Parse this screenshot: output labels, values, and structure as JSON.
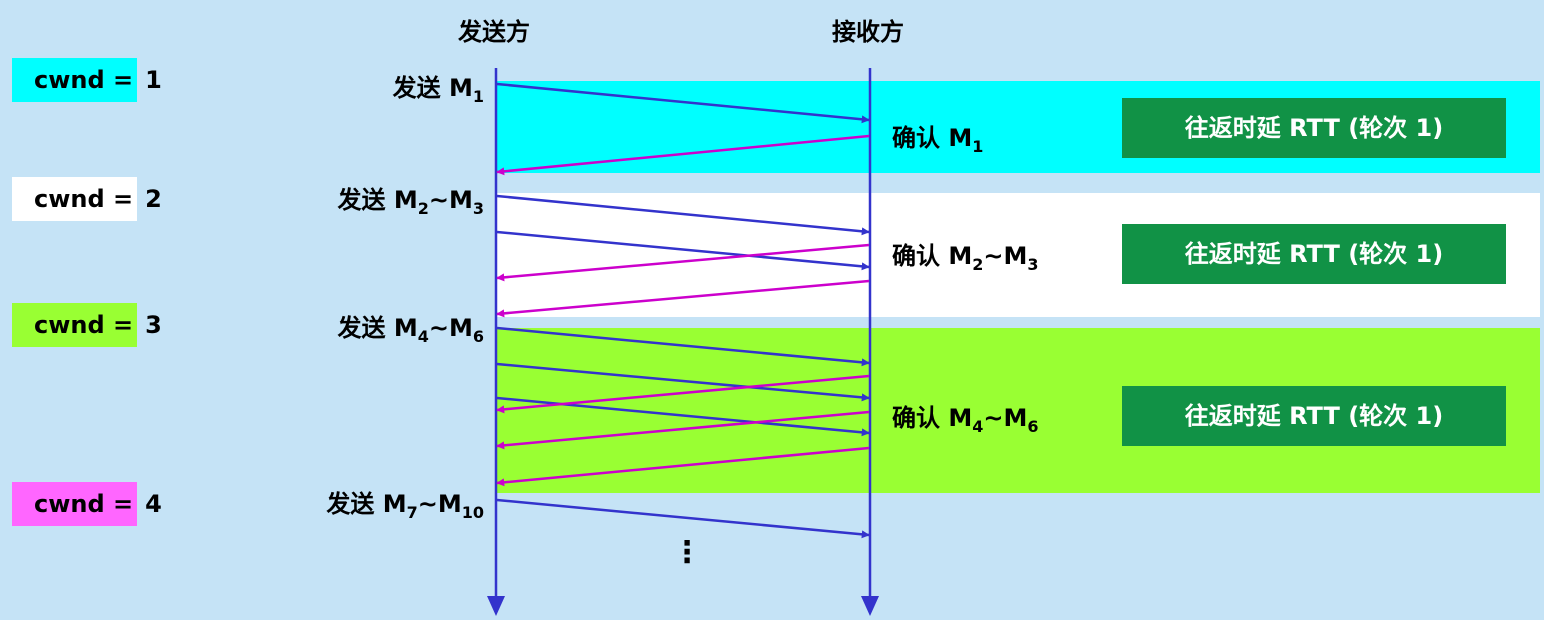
{
  "header": {
    "sender": "发送方",
    "receiver": "接收方"
  },
  "rounds": [
    {
      "cwnd_label": "cwnd =",
      "cwnd_value": "1",
      "cwnd_color": "#00ffff",
      "band_color": "#00ffff",
      "send": {
        "prefix": "发送 M",
        "s1": "1",
        "mid": "",
        "m2": "",
        "s2": ""
      },
      "ack": {
        "prefix": "确认 M",
        "s1": "1",
        "mid": "",
        "m2": "",
        "s2": ""
      },
      "rtt": "往返时延 RTT (轮次 1)"
    },
    {
      "cwnd_label": "cwnd =",
      "cwnd_value": "2",
      "cwnd_color": "#ffffff",
      "band_color": "#ffffff",
      "send": {
        "prefix": "发送 M",
        "s1": "2",
        "mid": "~",
        "m2": "M",
        "s2": "3"
      },
      "ack": {
        "prefix": "确认 M",
        "s1": "2",
        "mid": "~",
        "m2": "M",
        "s2": "3"
      },
      "rtt": "往返时延 RTT (轮次 1)"
    },
    {
      "cwnd_label": "cwnd =",
      "cwnd_value": "3",
      "cwnd_color": "#99ff33",
      "band_color": "#99ff33",
      "send": {
        "prefix": "发送 M",
        "s1": "4",
        "mid": "~",
        "m2": "M",
        "s2": "6"
      },
      "ack": {
        "prefix": "确认 M",
        "s1": "4",
        "mid": "~",
        "m2": "M",
        "s2": "6"
      },
      "rtt": "往返时延 RTT (轮次 1)"
    },
    {
      "cwnd_label": "cwnd =",
      "cwnd_value": "4",
      "cwnd_color": "#ff66ff",
      "send": {
        "prefix": "发送 M",
        "s1": "7",
        "mid": "~",
        "m2": "M",
        "s2": "10"
      }
    }
  ],
  "ellipsis": "⋮",
  "colors": {
    "data_arrow": "#3333cc",
    "ack_arrow": "#cc00cc",
    "rtt_box": "#119246",
    "background": "#c5e3f6"
  }
}
